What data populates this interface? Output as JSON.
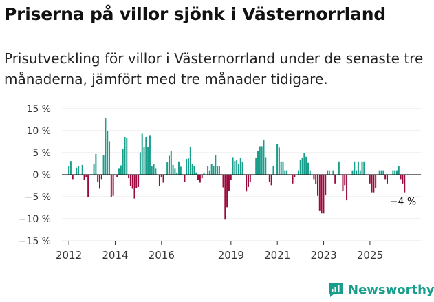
{
  "title": "Priserna på villor sjönk i Västernorrland",
  "subtitle": "Prisutveckling för villor i Västernorrland under de senaste tre månaderna, jämfört med tre månader tidigare.",
  "brand": {
    "name": "Newsworthy",
    "color": "#1a9e8c"
  },
  "colors": {
    "positive": "#1a9e8c",
    "negative": "#9b0a3e"
  },
  "chart_data": {
    "type": "bar",
    "title": "Priserna på villor sjönk i Västernorrland",
    "xlabel": "",
    "ylabel": "",
    "ylim": [
      -15,
      15
    ],
    "y_ticks": [
      15,
      10,
      5,
      0,
      -5,
      -10,
      -15
    ],
    "y_tick_labels": [
      "15 %",
      "10 %",
      "5 %",
      "0 %",
      "−5 %",
      "−10 %",
      "−15 %"
    ],
    "x_ticks": [
      2012,
      2014,
      2016,
      2019,
      2021,
      2023,
      2025
    ],
    "x_start": 2012.0,
    "x_step": 0.0833,
    "annotation": "−4 %",
    "values": [
      2.0,
      3.1,
      -1.0,
      0.0,
      1.6,
      2.0,
      0.0,
      2.2,
      -1.2,
      -0.6,
      -5.0,
      0.0,
      0.0,
      2.4,
      4.7,
      -1.6,
      -3.2,
      -1.0,
      4.5,
      12.8,
      10.0,
      7.6,
      -5.0,
      -4.8,
      0.0,
      -0.5,
      1.5,
      2.1,
      5.8,
      8.6,
      8.3,
      -0.8,
      -2.6,
      -3.2,
      -5.4,
      -3.0,
      -2.8,
      5.1,
      9.3,
      6.3,
      8.6,
      6.3,
      9.0,
      2.0,
      2.5,
      1.5,
      0.0,
      -2.6,
      -0.6,
      -1.8,
      0.0,
      2.8,
      4.3,
      5.4,
      2.2,
      1.5,
      0.5,
      3.0,
      1.8,
      0.0,
      -1.7,
      3.6,
      3.7,
      6.4,
      2.5,
      2.0,
      0.5,
      -1.2,
      -1.8,
      -0.8,
      0.5,
      0.0,
      2.0,
      1.0,
      2.5,
      2.0,
      4.5,
      2.0,
      2.0,
      0.0,
      -2.9,
      -10.2,
      -7.4,
      -3.6,
      -1.1,
      4.0,
      3.1,
      3.4,
      2.4,
      3.9,
      3.0,
      0.0,
      -3.8,
      -2.8,
      -1.6,
      0.0,
      0.0,
      3.9,
      5.4,
      6.5,
      6.5,
      7.8,
      4.0,
      0.0,
      -1.7,
      -2.4,
      2.0,
      0.0,
      7.0,
      6.2,
      3.0,
      3.0,
      1.0,
      1.0,
      0.0,
      0.0,
      -2.0,
      -0.5,
      0.0,
      1.0,
      3.4,
      3.8,
      4.9,
      4.1,
      2.7,
      1.0,
      0.0,
      -1.0,
      -2.2,
      -4.8,
      -8.1,
      -8.8,
      -8.8,
      -4.7,
      1.0,
      1.0,
      0.0,
      1.0,
      -2.0,
      0.0,
      3.0,
      0.0,
      -3.7,
      -2.4,
      -5.8,
      0.0,
      0.0,
      1.0,
      3.0,
      1.0,
      3.0,
      1.0,
      3.0,
      3.0,
      0.0,
      0.0,
      -2.0,
      -4.0,
      -4.0,
      -3.0,
      0.0,
      1.0,
      1.0,
      1.0,
      -1.0,
      -2.0,
      0.0,
      0.0,
      1.0,
      1.0,
      1.0,
      2.0,
      -1.0,
      -2.0,
      -4.0
    ]
  }
}
